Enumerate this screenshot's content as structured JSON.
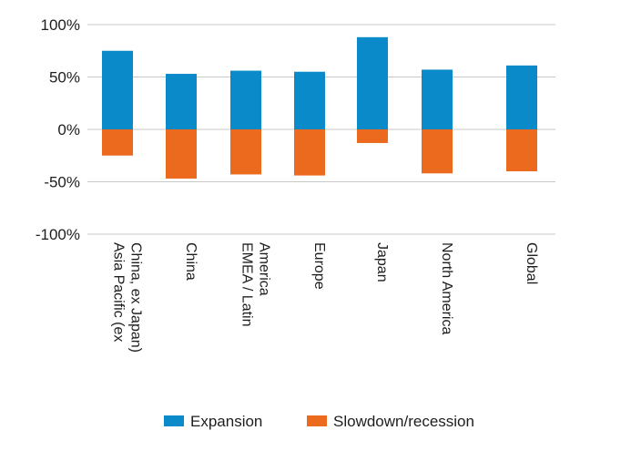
{
  "chart_data": {
    "type": "bar",
    "stacked": true,
    "categories": [
      [
        "Asia Pacific (ex",
        "China, ex Japan)"
      ],
      [
        "China"
      ],
      [
        "EMEA / Latin",
        "America"
      ],
      [
        "Europe"
      ],
      [
        "Japan"
      ],
      [
        "North America"
      ],
      [
        "Global"
      ]
    ],
    "series": [
      {
        "name": "Expansion",
        "color": "#0a8ac9",
        "values": [
          75,
          53,
          56,
          55,
          88,
          57,
          61
        ]
      },
      {
        "name": "Slowdown/recession",
        "color": "#ec6a1e",
        "values": [
          -25,
          -47,
          -43,
          -44,
          -13,
          -42,
          -40
        ]
      }
    ],
    "ylim": [
      -100,
      100
    ],
    "yticks": [
      100,
      50,
      0,
      -50,
      -100
    ],
    "ytick_labels": [
      "100%",
      "50%",
      "0%",
      "-50%",
      "-100%"
    ],
    "grid": true,
    "legend_position": "bottom",
    "title": "",
    "xlabel": "",
    "ylabel": ""
  }
}
